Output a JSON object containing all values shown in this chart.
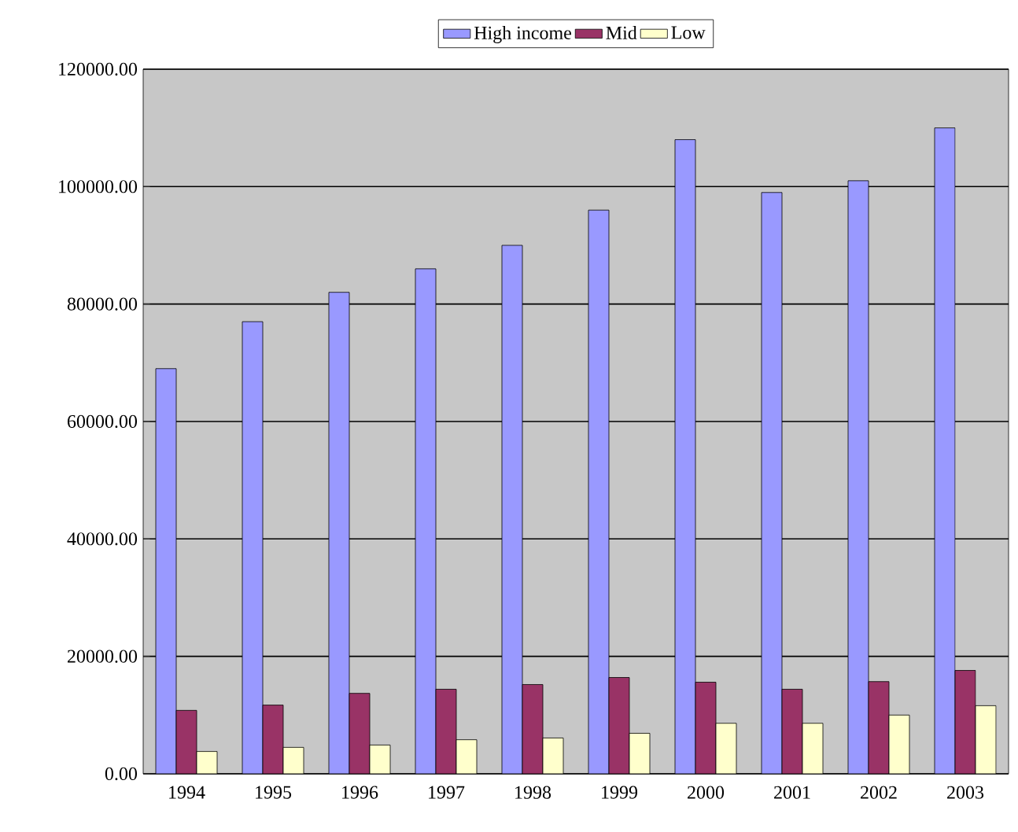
{
  "chart_data": {
    "type": "bar",
    "categories": [
      "1994",
      "1995",
      "1996",
      "1997",
      "1998",
      "1999",
      "2000",
      "2001",
      "2002",
      "2003"
    ],
    "series": [
      {
        "name": "High income",
        "color": "#9999ff",
        "values": [
          69000,
          77000,
          82000,
          86000,
          90000,
          96000,
          108000,
          99000,
          101000,
          110000
        ]
      },
      {
        "name": "Mid",
        "color": "#993366",
        "values": [
          10800,
          11700,
          13700,
          14400,
          15200,
          16400,
          15600,
          14400,
          15700,
          17600
        ]
      },
      {
        "name": "Low",
        "color": "#ffffcc",
        "values": [
          3800,
          4500,
          4900,
          5800,
          6100,
          6900,
          8600,
          8600,
          10000,
          11600
        ]
      }
    ],
    "ylim": [
      0,
      120000
    ],
    "yticks": [
      {
        "value": 0,
        "label": "0.00"
      },
      {
        "value": 20000,
        "label": "20000.00"
      },
      {
        "value": 40000,
        "label": "40000.00"
      },
      {
        "value": 60000,
        "label": "60000.00"
      },
      {
        "value": 80000,
        "label": "80000.00"
      },
      {
        "value": 100000,
        "label": "100000.00"
      },
      {
        "value": 120000,
        "label": "120000.00"
      }
    ],
    "grid": "y",
    "legend": "top"
  }
}
